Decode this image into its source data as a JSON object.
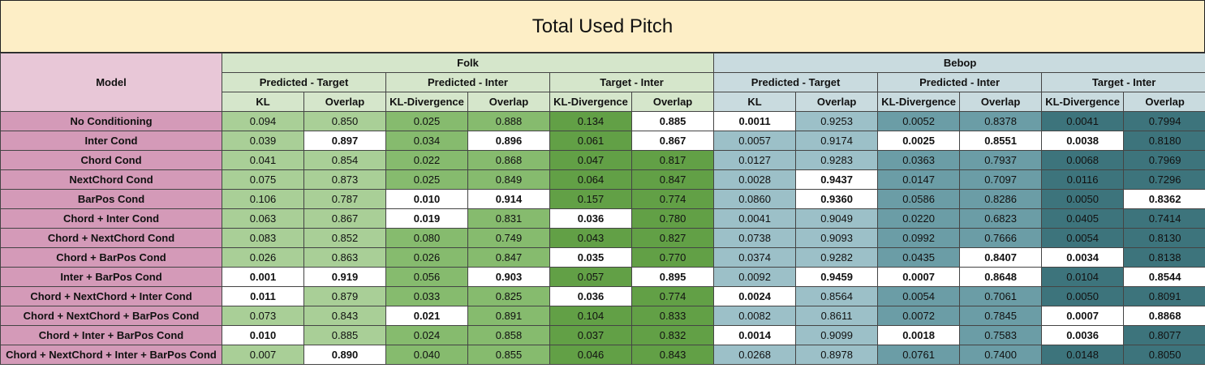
{
  "title": "Total Used Pitch",
  "header": {
    "model": "Model",
    "groups": [
      "Folk",
      "Bebop"
    ],
    "subgroups": [
      "Predicted - Target",
      "Predicted - Inter",
      "Target - Inter",
      "Predicted - Target",
      "Predicted - Inter",
      "Target - Inter"
    ],
    "metrics": [
      "KL",
      "Overlap",
      "KL-Divergence",
      "Overlap",
      "KL-Divergence",
      "Overlap",
      "KL",
      "Overlap",
      "KL-Divergence",
      "Overlap",
      "KL-Divergence",
      "Overlap"
    ]
  },
  "colors": {
    "title_bg": "#fdeec6",
    "model_header_bg": "#e8c7d7",
    "model_cell_bg": "#d49ab8",
    "folk_header_bg": "#d5e6cb",
    "bebop_header_bg": "#c9dbdf",
    "column_bg": [
      "#a9cf97",
      "#a9cf97",
      "#86bb6e",
      "#86bb6e",
      "#62a046",
      "#62a046",
      "#9cc0c8",
      "#9cc0c8",
      "#6b9da6",
      "#6b9da6",
      "#3d747c",
      "#3d747c"
    ],
    "highlight_bg": "#ffffff"
  },
  "rows": [
    {
      "model": "No Conditioning",
      "values": [
        "0.094",
        "0.850",
        "0.025",
        "0.888",
        "0.134",
        "0.885",
        "0.0011",
        "0.9253",
        "0.0052",
        "0.8378",
        "0.0041",
        "0.7994"
      ],
      "highlight": [
        5,
        6
      ]
    },
    {
      "model": "Inter Cond",
      "values": [
        "0.039",
        "0.897",
        "0.034",
        "0.896",
        "0.061",
        "0.867",
        "0.0057",
        "0.9174",
        "0.0025",
        "0.8551",
        "0.0038",
        "0.8180"
      ],
      "highlight": [
        1,
        3,
        5,
        8,
        9,
        10
      ]
    },
    {
      "model": "Chord Cond",
      "values": [
        "0.041",
        "0.854",
        "0.022",
        "0.868",
        "0.047",
        "0.817",
        "0.0127",
        "0.9283",
        "0.0363",
        "0.7937",
        "0.0068",
        "0.7969"
      ],
      "highlight": []
    },
    {
      "model": "NextChord Cond",
      "values": [
        "0.075",
        "0.873",
        "0.025",
        "0.849",
        "0.064",
        "0.847",
        "0.0028",
        "0.9437",
        "0.0147",
        "0.7097",
        "0.0116",
        "0.7296"
      ],
      "highlight": [
        7
      ]
    },
    {
      "model": "BarPos Cond",
      "values": [
        "0.106",
        "0.787",
        "0.010",
        "0.914",
        "0.157",
        "0.774",
        "0.0860",
        "0.9360",
        "0.0586",
        "0.8286",
        "0.0050",
        "0.8362"
      ],
      "highlight": [
        2,
        3,
        7,
        11
      ]
    },
    {
      "model": "Chord + Inter Cond",
      "values": [
        "0.063",
        "0.867",
        "0.019",
        "0.831",
        "0.036",
        "0.780",
        "0.0041",
        "0.9049",
        "0.0220",
        "0.6823",
        "0.0405",
        "0.7414"
      ],
      "highlight": [
        2,
        4
      ]
    },
    {
      "model": "Chord + NextChord Cond",
      "values": [
        "0.083",
        "0.852",
        "0.080",
        "0.749",
        "0.043",
        "0.827",
        "0.0738",
        "0.9093",
        "0.0992",
        "0.7666",
        "0.0054",
        "0.8130"
      ],
      "highlight": []
    },
    {
      "model": "Chord + BarPos Cond",
      "values": [
        "0.026",
        "0.863",
        "0.026",
        "0.847",
        "0.035",
        "0.770",
        "0.0374",
        "0.9282",
        "0.0435",
        "0.8407",
        "0.0034",
        "0.8138"
      ],
      "highlight": [
        4,
        9,
        10
      ]
    },
    {
      "model": "Inter + BarPos Cond",
      "values": [
        "0.001",
        "0.919",
        "0.056",
        "0.903",
        "0.057",
        "0.895",
        "0.0092",
        "0.9459",
        "0.0007",
        "0.8648",
        "0.0104",
        "0.8544"
      ],
      "highlight": [
        0,
        1,
        3,
        5,
        7,
        8,
        9,
        11
      ]
    },
    {
      "model": "Chord + NextChord + Inter Cond",
      "values": [
        "0.011",
        "0.879",
        "0.033",
        "0.825",
        "0.036",
        "0.774",
        "0.0024",
        "0.8564",
        "0.0054",
        "0.7061",
        "0.0050",
        "0.8091"
      ],
      "highlight": [
        0,
        4,
        6
      ]
    },
    {
      "model": "Chord + NextChord + BarPos Cond",
      "values": [
        "0.073",
        "0.843",
        "0.021",
        "0.891",
        "0.104",
        "0.833",
        "0.0082",
        "0.8611",
        "0.0072",
        "0.7845",
        "0.0007",
        "0.8868"
      ],
      "highlight": [
        2,
        10,
        11
      ]
    },
    {
      "model": "Chord + Inter + BarPos Cond",
      "values": [
        "0.010",
        "0.885",
        "0.024",
        "0.858",
        "0.037",
        "0.832",
        "0.0014",
        "0.9099",
        "0.0018",
        "0.7583",
        "0.0036",
        "0.8077"
      ],
      "highlight": [
        0,
        6,
        8,
        10
      ]
    },
    {
      "model": "Chord + NextChord + Inter + BarPos Cond",
      "values": [
        "0.007",
        "0.890",
        "0.040",
        "0.855",
        "0.046",
        "0.843",
        "0.0268",
        "0.8978",
        "0.0761",
        "0.7400",
        "0.0148",
        "0.8050"
      ],
      "highlight": [
        1
      ]
    }
  ]
}
